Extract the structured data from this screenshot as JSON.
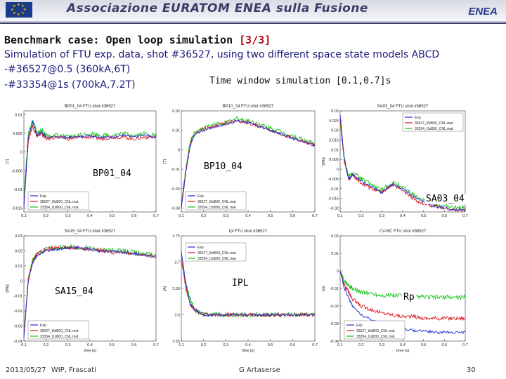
{
  "header": {
    "org_title": "Associazione EURATOM ENEA sulla Fusione",
    "logo": "ENEA"
  },
  "slide": {
    "title": "Benchmark case: Open loop simulation",
    "page_tag": "[3/3]",
    "subtitle": "Simulation of FTU exp. data, shot #36527, using two different space state models ABCD",
    "model_1": "-#36527@0.5 (360kA,6T)",
    "model_2": "-#33354@1s (700kA,7.2T)",
    "time_window": "Time window simulation [0.1,0.7]s"
  },
  "footer": {
    "date": "2013/05/27",
    "venue": "WIP, Frascati",
    "author": "G Artaserse",
    "page_number": "30"
  },
  "colors": {
    "exp": "#1f2fd6",
    "model_36527": "#e0141c",
    "model_33354": "#19c31a",
    "accent": "#b01010"
  },
  "chart_data": [
    {
      "type": "line",
      "panel_label": "BP01_04",
      "title": "BP01_04 FTU shot #36527",
      "ylim": [
        -0.016,
        0.011
      ],
      "yticks": [
        "0.01",
        "0.005",
        "0",
        "-0.005",
        "-0.01",
        "-0.015"
      ],
      "ylabel": "[T]",
      "xticks": [
        "0.1",
        "0.2",
        "0.3",
        "0.4",
        "0.5",
        "0.6",
        "0.7"
      ],
      "legend": [
        "Exp",
        "36527_t0d500_CNL.mat",
        "33354_t1d000_CNL.mat"
      ],
      "series": [
        {
          "name": "Exp",
          "x": [
            0.1,
            0.12,
            0.14,
            0.16,
            0.18,
            0.2,
            0.25,
            0.3,
            0.35,
            0.4,
            0.45,
            0.5,
            0.55,
            0.6,
            0.65,
            0.7
          ],
          "y": [
            -0.015,
            0.004,
            0.008,
            0.0045,
            0.0055,
            0.004,
            0.004,
            0.004,
            0.004,
            0.0045,
            0.004,
            0.004,
            0.0045,
            0.004,
            0.0045,
            0.004
          ]
        },
        {
          "name": "36527_t0d500_CNL.mat",
          "x": [
            0.1,
            0.12,
            0.14,
            0.16,
            0.18,
            0.2,
            0.25,
            0.3,
            0.35,
            0.4,
            0.45,
            0.5,
            0.55,
            0.6,
            0.65,
            0.7
          ],
          "y": [
            -0.014,
            0.003,
            0.007,
            0.004,
            0.005,
            0.0035,
            0.004,
            0.0035,
            0.004,
            0.004,
            0.0035,
            0.004,
            0.004,
            0.0035,
            0.004,
            0.004
          ]
        },
        {
          "name": "33354_t1d000_CNL.mat",
          "x": [
            0.1,
            0.12,
            0.14,
            0.16,
            0.18,
            0.2,
            0.25,
            0.3,
            0.35,
            0.4,
            0.45,
            0.5,
            0.55,
            0.6,
            0.65,
            0.7
          ],
          "y": [
            -0.012,
            0.005,
            0.0085,
            0.005,
            0.006,
            0.0045,
            0.0045,
            0.004,
            0.0045,
            0.005,
            0.0045,
            0.0045,
            0.005,
            0.0045,
            0.005,
            0.0045
          ]
        }
      ]
    },
    {
      "type": "line",
      "panel_label": "BP10_04",
      "title": "BP10_04 FTU shot #36527",
      "ylim": [
        -0.032,
        0.02
      ],
      "yticks": [
        "0.02",
        "0.01",
        "0",
        "-0.01",
        "-0.02",
        "-0.03"
      ],
      "ylabel": "[T]",
      "xticks": [
        "0.1",
        "0.2",
        "0.3",
        "0.4",
        "0.5",
        "0.6",
        "0.7"
      ],
      "legend": [
        "Exp",
        "36527_t0d500_CNL.mat",
        "33354_t1d000_CNL.mat"
      ],
      "series": [
        {
          "name": "Exp",
          "x": [
            0.1,
            0.12,
            0.14,
            0.16,
            0.2,
            0.25,
            0.3,
            0.35,
            0.4,
            0.45,
            0.5,
            0.55,
            0.6,
            0.65,
            0.7
          ],
          "y": [
            -0.03,
            -0.012,
            0.002,
            0.008,
            0.01,
            0.012,
            0.013,
            0.015,
            0.014,
            0.012,
            0.01,
            0.008,
            0.006,
            0.004,
            0.002
          ]
        },
        {
          "name": "36527_t0d500_CNL.mat",
          "x": [
            0.1,
            0.12,
            0.14,
            0.16,
            0.2,
            0.25,
            0.3,
            0.35,
            0.4,
            0.45,
            0.5,
            0.55,
            0.6,
            0.65,
            0.7
          ],
          "y": [
            -0.029,
            -0.011,
            0.003,
            0.008,
            0.011,
            0.012,
            0.014,
            0.015,
            0.014,
            0.012,
            0.01,
            0.008,
            0.006,
            0.004,
            0.002
          ]
        },
        {
          "name": "33354_t1d000_CNL.mat",
          "x": [
            0.1,
            0.12,
            0.14,
            0.16,
            0.2,
            0.25,
            0.3,
            0.35,
            0.4,
            0.45,
            0.5,
            0.55,
            0.6,
            0.65,
            0.7
          ],
          "y": [
            -0.028,
            -0.01,
            0.004,
            0.009,
            0.011,
            0.013,
            0.014,
            0.016,
            0.015,
            0.013,
            0.011,
            0.009,
            0.007,
            0.005,
            0.003
          ]
        }
      ]
    },
    {
      "type": "line",
      "panel_label": "SA03_04",
      "title": "SA03_04 FTU shot #36527",
      "ylim": [
        -0.022,
        0.03
      ],
      "yticks": [
        "0.03",
        "0.025",
        "0.02",
        "0.015",
        "0.01",
        "0.005",
        "0",
        "-0.005",
        "-0.01",
        "-0.015",
        "-0.02"
      ],
      "ylabel": "[Wb]",
      "xticks": [
        "0.1",
        "0.2",
        "0.3",
        "0.4",
        "0.5",
        "0.6",
        "0.7"
      ],
      "legend": [
        "Exp",
        "36527_t0d500_CNL.mat",
        "33354_t1d000_CNL.mat"
      ],
      "series": [
        {
          "name": "Exp",
          "x": [
            0.1,
            0.12,
            0.14,
            0.16,
            0.2,
            0.25,
            0.3,
            0.35,
            0.4,
            0.45,
            0.5,
            0.55,
            0.6,
            0.65,
            0.7
          ],
          "y": [
            0.028,
            0.005,
            -0.005,
            -0.003,
            -0.006,
            -0.009,
            -0.012,
            -0.008,
            -0.01,
            -0.014,
            -0.017,
            -0.019,
            -0.02,
            -0.021,
            -0.021
          ]
        },
        {
          "name": "36527_t0d500_CNL.mat",
          "x": [
            0.1,
            0.12,
            0.14,
            0.16,
            0.2,
            0.25,
            0.3,
            0.35,
            0.4,
            0.45,
            0.5,
            0.55,
            0.6,
            0.65,
            0.7
          ],
          "y": [
            0.026,
            0.004,
            -0.005,
            -0.003,
            -0.007,
            -0.01,
            -0.012,
            -0.008,
            -0.011,
            -0.015,
            -0.018,
            -0.019,
            -0.02,
            -0.021,
            -0.021
          ]
        },
        {
          "name": "33354_t1d000_CNL.mat",
          "x": [
            0.1,
            0.12,
            0.14,
            0.16,
            0.2,
            0.25,
            0.3,
            0.35,
            0.4,
            0.45,
            0.5,
            0.55,
            0.6,
            0.65,
            0.7
          ],
          "y": [
            0.024,
            0.006,
            -0.004,
            -0.002,
            -0.005,
            -0.008,
            -0.011,
            -0.007,
            -0.009,
            -0.013,
            -0.016,
            -0.018,
            -0.019,
            -0.02,
            -0.02
          ]
        }
      ]
    },
    {
      "type": "line",
      "panel_label": "SA15_04",
      "title": "SA15_04 FTU shot #36527",
      "ylim": [
        -0.04,
        0.03
      ],
      "yticks": [
        "0.03",
        "0.02",
        "0.01",
        "0",
        "-0.01",
        "-0.02",
        "-0.03",
        "-0.04"
      ],
      "ylabel": "[Wb]",
      "xticks": [
        "0.1",
        "0.2",
        "0.3",
        "0.4",
        "0.5",
        "0.6",
        "0.7"
      ],
      "xlabel": "time [s]",
      "legend": [
        "Exp",
        "36527_t0d500_CNL.mat",
        "33354_t1d000_CNL.mat"
      ],
      "series": [
        {
          "name": "Exp",
          "x": [
            0.1,
            0.12,
            0.14,
            0.16,
            0.2,
            0.25,
            0.3,
            0.35,
            0.4,
            0.45,
            0.5,
            0.55,
            0.6,
            0.65,
            0.7
          ],
          "y": [
            -0.038,
            0.0,
            0.012,
            0.017,
            0.02,
            0.021,
            0.022,
            0.022,
            0.021,
            0.02,
            0.02,
            0.019,
            0.018,
            0.017,
            0.016
          ]
        },
        {
          "name": "36527_t0d500_CNL.mat",
          "x": [
            0.1,
            0.12,
            0.14,
            0.16,
            0.2,
            0.25,
            0.3,
            0.35,
            0.4,
            0.45,
            0.5,
            0.55,
            0.6,
            0.65,
            0.7
          ],
          "y": [
            -0.036,
            0.001,
            0.013,
            0.018,
            0.021,
            0.022,
            0.022,
            0.022,
            0.021,
            0.02,
            0.019,
            0.019,
            0.018,
            0.017,
            0.016
          ]
        },
        {
          "name": "33354_t1d000_CNL.mat",
          "x": [
            0.1,
            0.12,
            0.14,
            0.16,
            0.2,
            0.25,
            0.3,
            0.35,
            0.4,
            0.45,
            0.5,
            0.55,
            0.6,
            0.65,
            0.7
          ],
          "y": [
            -0.034,
            0.002,
            0.014,
            0.018,
            0.021,
            0.022,
            0.023,
            0.022,
            0.022,
            0.021,
            0.02,
            0.02,
            0.019,
            0.018,
            0.017
          ]
        }
      ]
    },
    {
      "type": "line",
      "panel_label": "IPL",
      "title": "Ipl FTU shot #36527",
      "ylim": [
        3.55,
        3.75
      ],
      "yticks": [
        "3.75",
        "3.7",
        "3.65",
        "3.6",
        "3.55"
      ],
      "ylabel": "[A]",
      "xticks": [
        "0.1",
        "0.2",
        "0.3",
        "0.4",
        "0.5",
        "0.6",
        "0.7"
      ],
      "xlabel": "time [s]",
      "legend": [
        "Exp",
        "36527_t0d500_CNL.mat",
        "33354_t1d000_CNL.mat"
      ],
      "series": [
        {
          "name": "Exp",
          "x": [
            0.1,
            0.12,
            0.14,
            0.16,
            0.2,
            0.25,
            0.3,
            0.35,
            0.4,
            0.45,
            0.5,
            0.55,
            0.6,
            0.65,
            0.7
          ],
          "y": [
            3.72,
            3.66,
            3.62,
            3.61,
            3.6,
            3.6,
            3.6,
            3.6,
            3.6,
            3.6,
            3.6,
            3.6,
            3.6,
            3.6,
            3.6
          ]
        },
        {
          "name": "36527_t0d500_CNL.mat",
          "x": [
            0.1,
            0.12,
            0.14,
            0.16,
            0.2,
            0.25,
            0.3,
            0.35,
            0.4,
            0.45,
            0.5,
            0.55,
            0.6,
            0.65,
            0.7
          ],
          "y": [
            3.71,
            3.65,
            3.62,
            3.61,
            3.6,
            3.6,
            3.6,
            3.6,
            3.6,
            3.6,
            3.6,
            3.6,
            3.6,
            3.6,
            3.6
          ]
        },
        {
          "name": "33354_t1d000_CNL.mat",
          "x": [
            0.1,
            0.12,
            0.14,
            0.16,
            0.2,
            0.25,
            0.3,
            0.35,
            0.4,
            0.45,
            0.5,
            0.55,
            0.6,
            0.65,
            0.7
          ],
          "y": [
            3.7,
            3.66,
            3.63,
            3.61,
            3.6,
            3.6,
            3.6,
            3.6,
            3.6,
            3.6,
            3.6,
            3.6,
            3.6,
            3.6,
            3.6
          ]
        }
      ]
    },
    {
      "type": "line",
      "panel_label": "Rp",
      "title": "CV-RC FTU shot #36527",
      "ylim": [
        -0.04,
        0.02
      ],
      "yticks": [
        "0.02",
        "0.01",
        "0",
        "-0.01",
        "-0.02",
        "-0.03",
        "-0.04"
      ],
      "ylabel": "[m]",
      "xticks": [
        "0.1",
        "0.2",
        "0.3",
        "0.4",
        "0.5",
        "0.6",
        "0.7"
      ],
      "xlabel": "time [s]",
      "legend": [
        "Exp",
        "36527_t0d500_CNL.mat",
        "33354_t1d000_CNL.mat"
      ],
      "series": [
        {
          "name": "Exp",
          "x": [
            0.1,
            0.12,
            0.14,
            0.16,
            0.2,
            0.25,
            0.3,
            0.35,
            0.4,
            0.45,
            0.5,
            0.55,
            0.6,
            0.65,
            0.7
          ],
          "y": [
            0.0,
            -0.01,
            -0.015,
            -0.02,
            -0.025,
            -0.028,
            -0.03,
            -0.032,
            -0.033,
            -0.034,
            -0.034,
            -0.035,
            -0.035,
            -0.035,
            -0.035
          ]
        },
        {
          "name": "36527_t0d500_CNL.mat",
          "x": [
            0.1,
            0.12,
            0.14,
            0.16,
            0.2,
            0.25,
            0.3,
            0.35,
            0.4,
            0.45,
            0.5,
            0.55,
            0.6,
            0.65,
            0.7
          ],
          "y": [
            0.0,
            -0.008,
            -0.012,
            -0.016,
            -0.02,
            -0.022,
            -0.024,
            -0.025,
            -0.026,
            -0.026,
            -0.027,
            -0.027,
            -0.027,
            -0.027,
            -0.027
          ]
        },
        {
          "name": "33354_t1d000_CNL.mat",
          "x": [
            0.1,
            0.12,
            0.14,
            0.16,
            0.2,
            0.25,
            0.3,
            0.35,
            0.4,
            0.45,
            0.5,
            0.55,
            0.6,
            0.65,
            0.7
          ],
          "y": [
            0.0,
            -0.006,
            -0.008,
            -0.01,
            -0.012,
            -0.013,
            -0.014,
            -0.014,
            -0.014,
            -0.015,
            -0.015,
            -0.015,
            -0.015,
            -0.015,
            -0.015
          ]
        }
      ]
    }
  ]
}
